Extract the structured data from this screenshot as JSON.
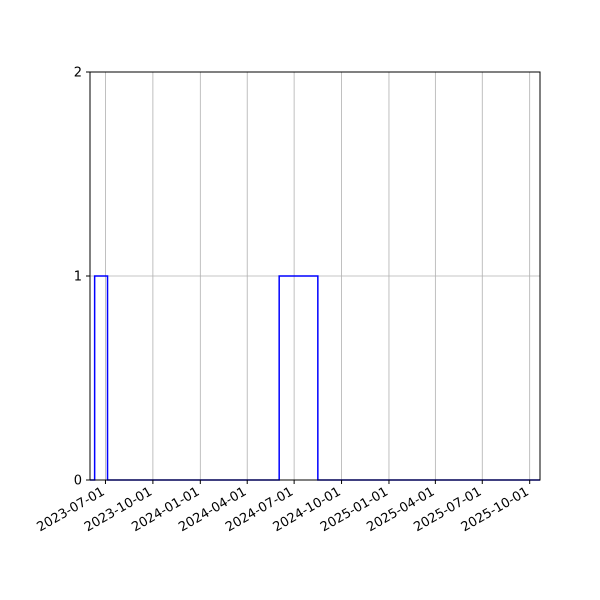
{
  "chart_data": {
    "type": "line",
    "step": true,
    "xaxis_type": "date",
    "xlim": [
      "2023-06-01",
      "2025-10-21"
    ],
    "ylim": [
      0,
      2
    ],
    "x_ticks": [
      "2023-07-01",
      "2023-10-01",
      "2024-01-01",
      "2024-04-01",
      "2024-07-01",
      "2024-10-01",
      "2025-01-01",
      "2025-04-01",
      "2025-07-01",
      "2025-10-01"
    ],
    "y_ticks": [
      "0",
      "1",
      "2"
    ],
    "grid": true,
    "colors": {
      "line": "#0000ff",
      "grid": "#b0b0b0",
      "axes": "#000000"
    },
    "series": [
      {
        "x": [
          "2023-06-01",
          "2023-06-10",
          "2023-06-10",
          "2023-07-05",
          "2023-07-05",
          "2024-06-02",
          "2024-06-02",
          "2024-08-16",
          "2024-08-16",
          "2025-10-21"
        ],
        "y": [
          0,
          0,
          1,
          1,
          0,
          0,
          1,
          1,
          0,
          0
        ]
      }
    ]
  }
}
